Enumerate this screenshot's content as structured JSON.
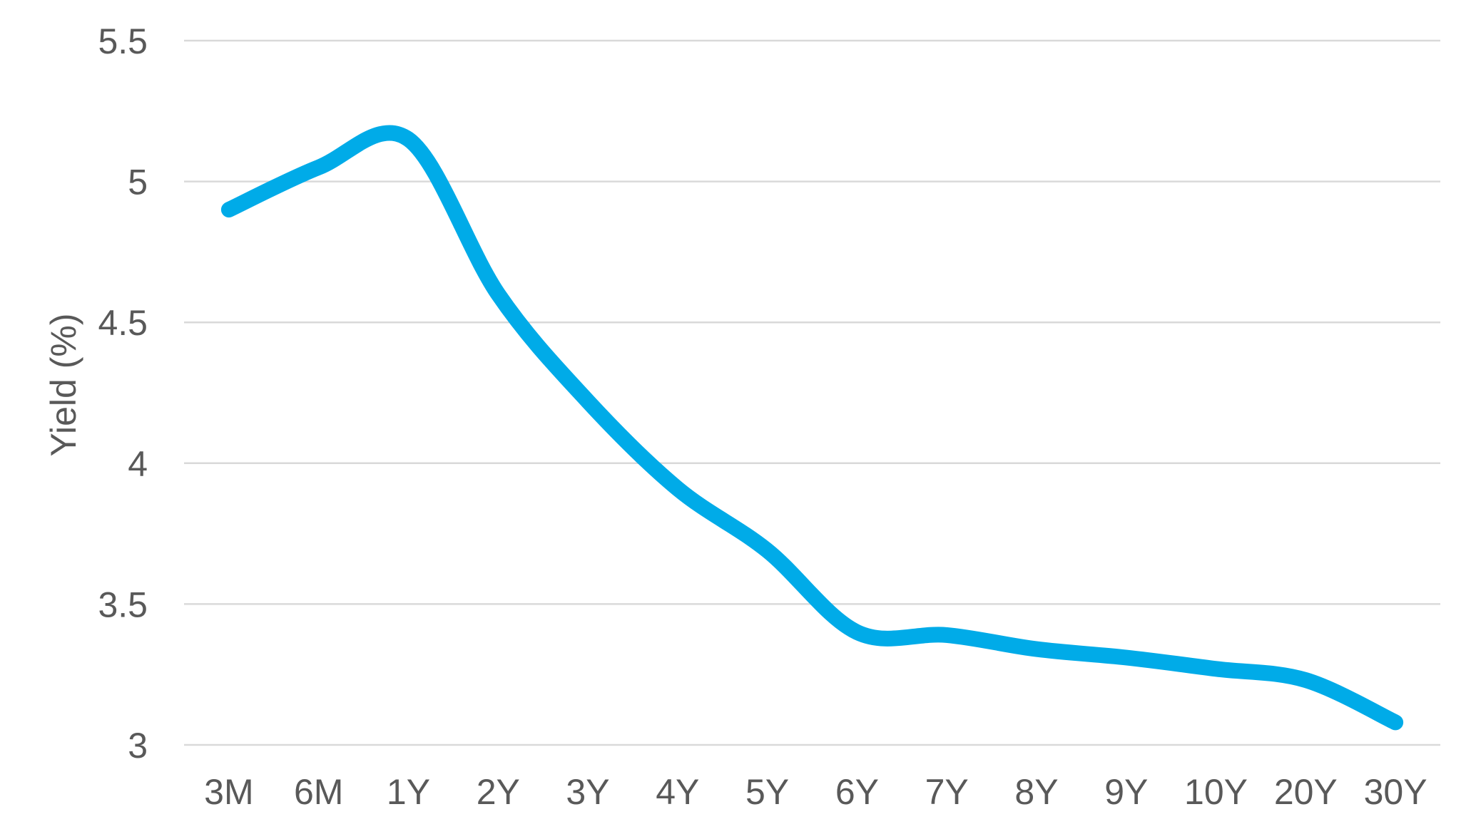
{
  "chart_data": {
    "type": "line",
    "title": "",
    "categories": [
      "3M",
      "6M",
      "1Y",
      "2Y",
      "3Y",
      "4Y",
      "5Y",
      "6Y",
      "7Y",
      "8Y",
      "9Y",
      "10Y",
      "20Y",
      "30Y"
    ],
    "series": [
      {
        "name": "Yield",
        "values": [
          4.9,
          5.05,
          5.15,
          4.6,
          4.22,
          3.91,
          3.69,
          3.4,
          3.39,
          3.34,
          3.31,
          3.27,
          3.23,
          3.08
        ]
      }
    ],
    "xlabel": "",
    "ylabel": "Yield (%)",
    "ylim": [
      3.0,
      5.5
    ],
    "yticks": [
      3,
      3.5,
      4,
      4.5,
      5,
      5.5
    ],
    "ytick_labels": [
      "3",
      "3.5",
      "4",
      "4.5",
      "5",
      "5.5"
    ],
    "grid": "horizontal-only",
    "legend_position": "none",
    "smooth": true,
    "colors": {
      "line": "#00ABE8",
      "gridline": "#d9d9d9",
      "text": "#595959",
      "background": "#ffffff"
    }
  }
}
